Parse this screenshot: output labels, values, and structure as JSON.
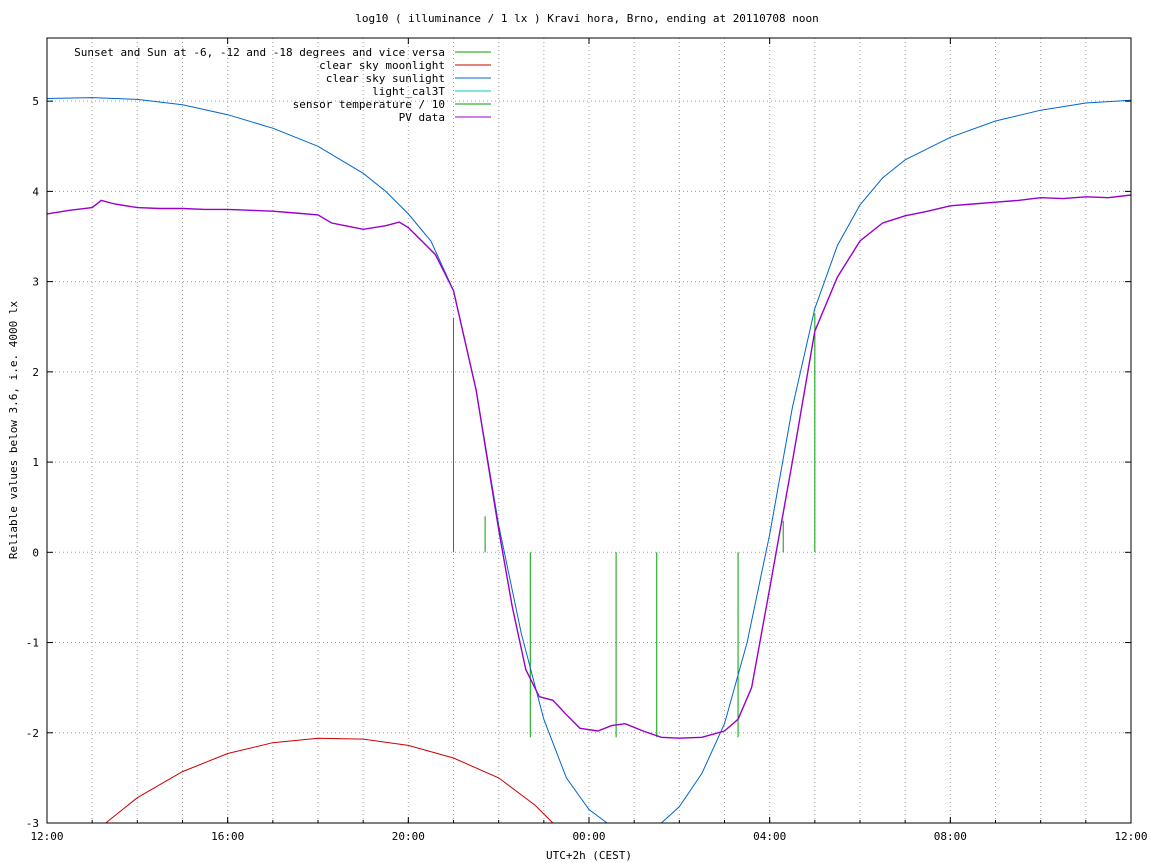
{
  "chart_data": {
    "type": "line",
    "title": "log10 ( illuminance / 1 lx ) Kravi hora, Brno, ending at 20110708 noon",
    "xlabel": "UTC+2h (CEST)",
    "ylabel": "Reliable values below 3.6, i.e. 4000 lx",
    "xlim": [
      12,
      36
    ],
    "ylim": [
      -3,
      5.7
    ],
    "grid": true,
    "legend_position": "top-left",
    "x_ticks": [
      {
        "x": 12,
        "label": "12:00"
      },
      {
        "x": 16,
        "label": "16:00"
      },
      {
        "x": 20,
        "label": "20:00"
      },
      {
        "x": 24,
        "label": "00:00"
      },
      {
        "x": 28,
        "label": "04:00"
      },
      {
        "x": 32,
        "label": "08:00"
      },
      {
        "x": 36,
        "label": "12:00"
      }
    ],
    "y_ticks": [
      {
        "y": 5,
        "label": "5"
      },
      {
        "y": 4,
        "label": "4"
      },
      {
        "y": 3,
        "label": "3"
      },
      {
        "y": 2,
        "label": "2"
      },
      {
        "y": 1,
        "label": "1"
      },
      {
        "y": 0,
        "label": "0"
      },
      {
        "y": -1,
        "label": "-1"
      },
      {
        "y": -2,
        "label": "-2"
      },
      {
        "y": -3,
        "label": "-3"
      }
    ],
    "minor_x_step": 1,
    "series": [
      {
        "name": "Sunset and Sun at -6, -12 and -18 degrees and vice versa",
        "color": "#00a000",
        "type": "impulse",
        "impulses": [
          {
            "x": 21.0,
            "y": 2.6
          },
          {
            "x": 21.7,
            "y": 0.4
          },
          {
            "x": 22.7,
            "y": -2.05
          },
          {
            "x": 24.6,
            "y": -2.05
          },
          {
            "x": 25.5,
            "y": -2.05
          },
          {
            "x": 27.3,
            "y": -2.05
          },
          {
            "x": 28.3,
            "y": 0.35
          },
          {
            "x": 29.0,
            "y": 2.65
          }
        ]
      },
      {
        "name": "clear sky moonlight",
        "color": "#cc0000",
        "points": [
          [
            13.3,
            -3.0
          ],
          [
            14,
            -2.72
          ],
          [
            15,
            -2.43
          ],
          [
            16,
            -2.23
          ],
          [
            17,
            -2.11
          ],
          [
            18,
            -2.06
          ],
          [
            19,
            -2.07
          ],
          [
            20,
            -2.14
          ],
          [
            21,
            -2.28
          ],
          [
            22,
            -2.5
          ],
          [
            22.8,
            -2.8
          ],
          [
            23.2,
            -3.0
          ]
        ]
      },
      {
        "name": "clear sky sunlight",
        "color": "#0066cc",
        "points": [
          [
            12,
            5.03
          ],
          [
            13,
            5.04
          ],
          [
            14,
            5.02
          ],
          [
            15,
            4.96
          ],
          [
            16,
            4.85
          ],
          [
            17,
            4.7
          ],
          [
            18,
            4.5
          ],
          [
            19,
            4.2
          ],
          [
            19.5,
            4.0
          ],
          [
            20,
            3.75
          ],
          [
            20.5,
            3.45
          ],
          [
            21,
            2.9
          ],
          [
            21.5,
            1.8
          ],
          [
            22,
            0.3
          ],
          [
            22.5,
            -0.9
          ],
          [
            23,
            -1.85
          ],
          [
            23.5,
            -2.5
          ],
          [
            24,
            -2.85
          ],
          [
            24.4,
            -3.0
          ],
          [
            25.6,
            -3.0
          ],
          [
            26,
            -2.82
          ],
          [
            26.5,
            -2.45
          ],
          [
            27,
            -1.9
          ],
          [
            27.5,
            -1.0
          ],
          [
            28,
            0.2
          ],
          [
            28.5,
            1.6
          ],
          [
            29,
            2.7
          ],
          [
            29.5,
            3.4
          ],
          [
            30,
            3.85
          ],
          [
            30.5,
            4.15
          ],
          [
            31,
            4.35
          ],
          [
            32,
            4.6
          ],
          [
            33,
            4.78
          ],
          [
            34,
            4.9
          ],
          [
            35,
            4.98
          ],
          [
            36,
            5.01
          ]
        ]
      },
      {
        "name": "light_cal3T",
        "color": "#00cccc",
        "points": []
      },
      {
        "name": "sensor temperature / 10",
        "color": "#009900",
        "points": []
      },
      {
        "name": "PV data",
        "color": "#9900cc",
        "points": [
          [
            12,
            3.75
          ],
          [
            12.5,
            3.79
          ],
          [
            13,
            3.82
          ],
          [
            13.2,
            3.9
          ],
          [
            13.5,
            3.86
          ],
          [
            14,
            3.82
          ],
          [
            14.5,
            3.81
          ],
          [
            15,
            3.81
          ],
          [
            15.5,
            3.8
          ],
          [
            16,
            3.8
          ],
          [
            16.5,
            3.79
          ],
          [
            17,
            3.78
          ],
          [
            17.5,
            3.76
          ],
          [
            18,
            3.74
          ],
          [
            18.3,
            3.65
          ],
          [
            18.6,
            3.62
          ],
          [
            19,
            3.58
          ],
          [
            19.5,
            3.62
          ],
          [
            19.8,
            3.66
          ],
          [
            20,
            3.6
          ],
          [
            20.3,
            3.45
          ],
          [
            20.6,
            3.3
          ],
          [
            21,
            2.9
          ],
          [
            21.5,
            1.8
          ],
          [
            22,
            0.25
          ],
          [
            22.3,
            -0.6
          ],
          [
            22.6,
            -1.3
          ],
          [
            22.9,
            -1.6
          ],
          [
            23.2,
            -1.64
          ],
          [
            23.5,
            -1.8
          ],
          [
            23.8,
            -1.95
          ],
          [
            24.2,
            -1.98
          ],
          [
            24.5,
            -1.92
          ],
          [
            24.8,
            -1.9
          ],
          [
            25.2,
            -1.98
          ],
          [
            25.6,
            -2.05
          ],
          [
            26,
            -2.06
          ],
          [
            26.5,
            -2.05
          ],
          [
            27,
            -1.98
          ],
          [
            27.3,
            -1.85
          ],
          [
            27.6,
            -1.5
          ],
          [
            28,
            -0.4
          ],
          [
            28.5,
            1.0
          ],
          [
            29,
            2.45
          ],
          [
            29.5,
            3.05
          ],
          [
            30,
            3.45
          ],
          [
            30.5,
            3.65
          ],
          [
            31,
            3.73
          ],
          [
            31.5,
            3.78
          ],
          [
            32,
            3.84
          ],
          [
            32.5,
            3.86
          ],
          [
            33,
            3.88
          ],
          [
            33.5,
            3.9
          ],
          [
            34,
            3.93
          ],
          [
            34.5,
            3.92
          ],
          [
            35,
            3.94
          ],
          [
            35.5,
            3.93
          ],
          [
            36,
            3.96
          ]
        ]
      }
    ]
  }
}
